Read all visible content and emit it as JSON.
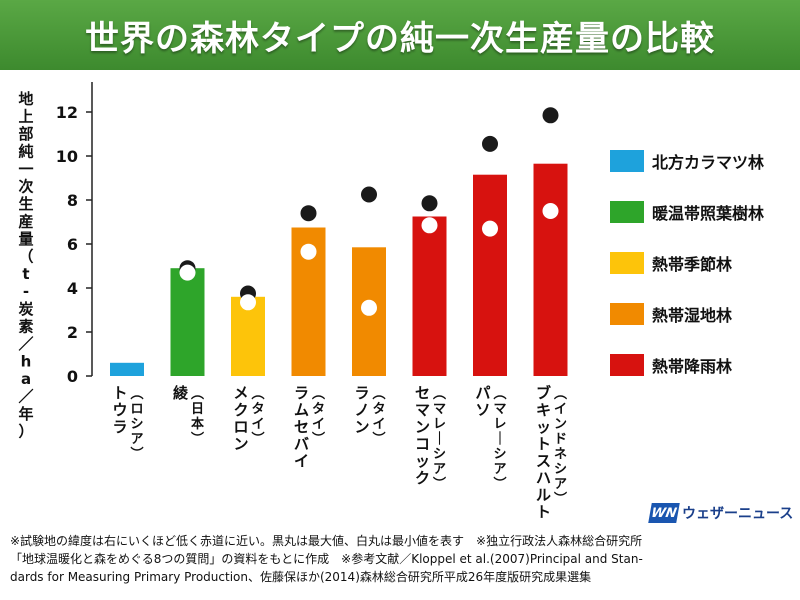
{
  "title": "世界の森林タイプの純一次生産量の比較",
  "chart_data": {
    "type": "bar",
    "ylabel": "地上部純一次生産量（t‐炭素／ha／年）",
    "ylim": [
      0,
      13
    ],
    "yticks": [
      0,
      2,
      4,
      6,
      8,
      10,
      12
    ],
    "categories": [
      {
        "name": "トウラ",
        "sub": "（ロシア）",
        "value": 0.6,
        "max": null,
        "min": null,
        "type_index": 0
      },
      {
        "name": "綾",
        "sub": "（日本）",
        "value": 4.9,
        "max": 4.9,
        "min": 4.7,
        "type_index": 1
      },
      {
        "name": "メクロン",
        "sub": "（タイ）",
        "value": 3.6,
        "max": 3.75,
        "min": 3.35,
        "type_index": 2
      },
      {
        "name": "ラムセバイ",
        "sub": "（タイ）",
        "value": 6.75,
        "max": 7.4,
        "min": 5.65,
        "type_index": 3
      },
      {
        "name": "ラノン",
        "sub": "（タイ）",
        "value": 5.85,
        "max": 8.25,
        "min": 3.1,
        "type_index": 3
      },
      {
        "name": "セマンコック",
        "sub": "（マレーシア）",
        "value": 7.25,
        "max": 7.85,
        "min": 6.85,
        "type_index": 4
      },
      {
        "name": "パソ",
        "sub": "（マレーシア）",
        "value": 9.15,
        "max": 10.55,
        "min": 6.7,
        "type_index": 4
      },
      {
        "name": "ブキットスハルト",
        "sub": "（インドネシア）",
        "value": 9.65,
        "max": 11.85,
        "min": 7.5,
        "type_index": 4
      }
    ],
    "legend": [
      {
        "label": "北方カラマツ林",
        "color": "#1ea2dc"
      },
      {
        "label": "暖温帯照葉樹林",
        "color": "#2ea52a"
      },
      {
        "label": "熱帯季節林",
        "color": "#fdc40a"
      },
      {
        "label": "熱帯湿地林",
        "color": "#f18a00"
      },
      {
        "label": "熱帯降雨林",
        "color": "#d7120f"
      }
    ]
  },
  "logo": {
    "mark": "WN",
    "text": "ウェザーニュース"
  },
  "footnote": [
    "※試験地の緯度は右にいくほど低く赤道に近い。黒丸は最大値、白丸は最小値を表す　※独立行政法人森林総合研究所",
    "「地球温暖化と森をめぐる8つの質問」の資料をもとに作成　※参考文献／Kloppel et al.(2007)Principal and Stan-",
    "dards for Measuring Primary Production、佐藤保ほか(2014)森林総合研究所平成26年度版研究成果選集"
  ]
}
